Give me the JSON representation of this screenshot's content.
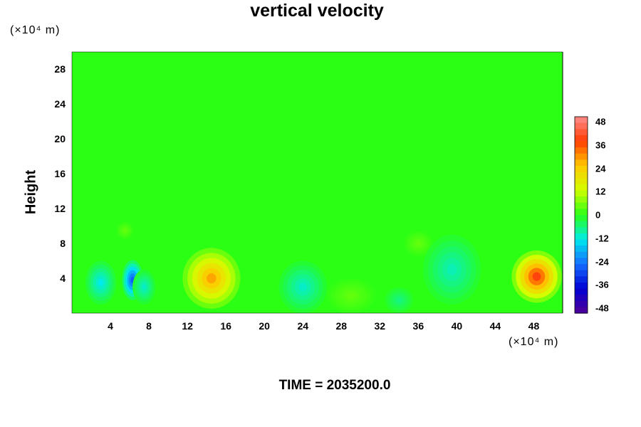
{
  "chart_data": {
    "type": "heatmap",
    "title": "vertical velocity",
    "ylabel": "Height",
    "xunit": "(×10⁴ m)",
    "yunit": "(×10⁴ m)",
    "footer": "TIME = 2035200.0",
    "x_ticks": [
      "4",
      "8",
      "12",
      "16",
      "20",
      "24",
      "28",
      "32",
      "36",
      "40",
      "44",
      "48"
    ],
    "y_ticks": [
      "4",
      "8",
      "12",
      "16",
      "20",
      "24",
      "28"
    ],
    "xlim": [
      0,
      51
    ],
    "ylim": [
      0,
      30
    ],
    "colorbar": {
      "ticks": [
        "48",
        "36",
        "24",
        "12",
        "0",
        "-12",
        "-24",
        "-36",
        "-48"
      ],
      "range": [
        -48,
        48
      ]
    },
    "background_value": 0,
    "features": [
      {
        "x": 6.3,
        "y": 3.8,
        "value": -26,
        "sx": 1.1,
        "sy": 2.3
      },
      {
        "x": 3.0,
        "y": 3.5,
        "value": -12,
        "sx": 1.6,
        "sy": 2.5
      },
      {
        "x": 7.5,
        "y": 3.0,
        "value": -10,
        "sx": 1.2,
        "sy": 2.0
      },
      {
        "x": 14.5,
        "y": 4.0,
        "value": 27,
        "sx": 3.0,
        "sy": 3.5
      },
      {
        "x": 24.0,
        "y": 3.0,
        "value": -10,
        "sx": 2.5,
        "sy": 3.0
      },
      {
        "x": 29.0,
        "y": 2.0,
        "value": 4,
        "sx": 2.5,
        "sy": 2.0
      },
      {
        "x": 34.0,
        "y": 1.5,
        "value": -6,
        "sx": 1.5,
        "sy": 1.5
      },
      {
        "x": 36.0,
        "y": 8.0,
        "value": 4,
        "sx": 1.5,
        "sy": 1.5
      },
      {
        "x": 39.5,
        "y": 5.0,
        "value": -9,
        "sx": 3.0,
        "sy": 4.0
      },
      {
        "x": 48.3,
        "y": 4.2,
        "value": 37,
        "sx": 2.6,
        "sy": 3.0
      },
      {
        "x": 5.5,
        "y": 9.5,
        "value": 4,
        "sx": 0.9,
        "sy": 1.0
      }
    ]
  }
}
